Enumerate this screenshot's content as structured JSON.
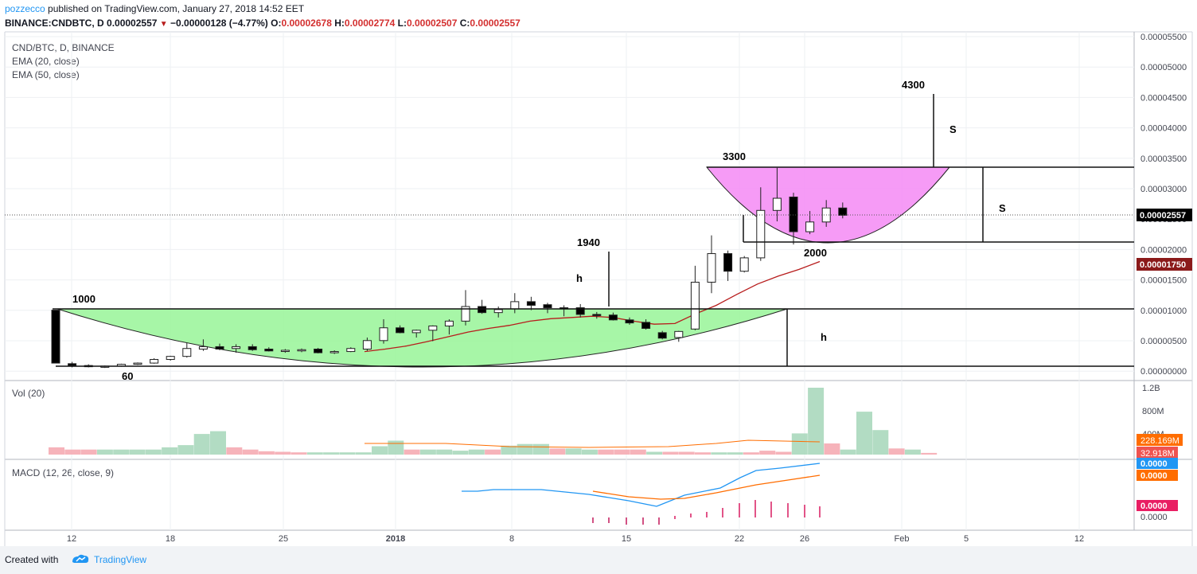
{
  "header": {
    "user": "pozzecco",
    "published_text": "published on TradingView.com, January 27, 2018 14:52 EET",
    "symbol": "BINANCE:CNDBTC, D",
    "last": "0.00002557",
    "arrow": "▼",
    "change": "−0.00000128 (−4.77%)",
    "o_label": "O:",
    "o": "0.00002678",
    "h_label": "H:",
    "h": "0.00002774",
    "l_label": "L:",
    "l": "0.00002507",
    "c_label": "C:",
    "c": "0.00002557"
  },
  "legend": {
    "title": "CND/BTC, D, BINANCE",
    "ema20": "EMA (20, close)",
    "ema50": "EMA (50, close)",
    "vol": "Vol (20)",
    "macd": "MACD (12, 26, close, 9)"
  },
  "footer": {
    "created": "Created with",
    "brand": "TradingView"
  },
  "colors": {
    "up_candle": "#ffffff",
    "down_candle": "#000000",
    "vol_up": "#a5d6b8",
    "vol_down": "#f4a6ae",
    "ema": "#b71c1c",
    "cup_fill": "#98f598",
    "handle_fill": "#f58af5",
    "macd": "#2196f3",
    "signal": "#ff6d00"
  },
  "chart_data": {
    "type": "candlestick",
    "x_axis_labels": [
      "12",
      "18",
      "25",
      "2018",
      "8",
      "15",
      "22",
      "26",
      "Feb",
      "5",
      "12"
    ],
    "price_axis_labels": [
      "0.00005500",
      "0.00005000",
      "0.00004500",
      "0.00004000",
      "0.00003500",
      "0.00003000",
      "0.00002500",
      "0.00002000",
      "0.00001500",
      "0.00001000",
      "0.00000500",
      "0.00000000"
    ],
    "price_tags": [
      "0.00002557",
      "0.00001750"
    ],
    "volume_axis_labels": [
      "1.2B",
      "800M",
      "400M"
    ],
    "volume_tags": [
      "228.169M",
      "32.918M"
    ],
    "macd_axis_labels": [
      "0.0000"
    ],
    "macd_tags": [
      "0.0000",
      "0.0000",
      "0.0000"
    ],
    "candles": [
      {
        "o": 1e-05,
        "h": 1e-05,
        "l": 1.3e-06,
        "c": 1.3e-06
      },
      {
        "o": 1.2e-06,
        "h": 1.5e-06,
        "l": 6e-07,
        "c": 9e-07
      },
      {
        "o": 9e-07,
        "h": 1.1e-06,
        "l": 6e-07,
        "c": 7e-07
      },
      {
        "o": 7e-07,
        "h": 9e-07,
        "l": 5e-07,
        "c": 8e-07
      },
      {
        "o": 8e-07,
        "h": 1.2e-06,
        "l": 7e-07,
        "c": 1.1e-06
      },
      {
        "o": 1.1e-06,
        "h": 1.4e-06,
        "l": 1e-06,
        "c": 1.3e-06
      },
      {
        "o": 1.3e-06,
        "h": 2.1e-06,
        "l": 1.2e-06,
        "c": 1.9e-06
      },
      {
        "o": 1.9e-06,
        "h": 2.5e-06,
        "l": 1.7e-06,
        "c": 2.4e-06
      },
      {
        "o": 2.4e-06,
        "h": 4.6e-06,
        "l": 2.2e-06,
        "c": 3.7e-06
      },
      {
        "o": 3.6e-06,
        "h": 5.2e-06,
        "l": 3.3e-06,
        "c": 4e-06
      },
      {
        "o": 4e-06,
        "h": 4.5e-06,
        "l": 3.4e-06,
        "c": 3.6e-06
      },
      {
        "o": 3.7e-06,
        "h": 4.4e-06,
        "l": 3e-06,
        "c": 4e-06
      },
      {
        "o": 4e-06,
        "h": 4.4e-06,
        "l": 3.3e-06,
        "c": 3.5e-06
      },
      {
        "o": 3.6e-06,
        "h": 3.9e-06,
        "l": 3.2e-06,
        "c": 3.3e-06
      },
      {
        "o": 3.3e-06,
        "h": 3.6e-06,
        "l": 3e-06,
        "c": 3.4e-06
      },
      {
        "o": 3.4e-06,
        "h": 3.7e-06,
        "l": 3.1e-06,
        "c": 3.5e-06
      },
      {
        "o": 3.6e-06,
        "h": 3.8e-06,
        "l": 2.9e-06,
        "c": 3e-06
      },
      {
        "o": 3e-06,
        "h": 3.4e-06,
        "l": 2.8e-06,
        "c": 3.2e-06
      },
      {
        "o": 3.2e-06,
        "h": 3.9e-06,
        "l": 3.1e-06,
        "c": 3.7e-06
      },
      {
        "o": 3.6e-06,
        "h": 5.5e-06,
        "l": 3.3e-06,
        "c": 5e-06
      },
      {
        "o": 5e-06,
        "h": 8.5e-06,
        "l": 4.5e-06,
        "c": 7.1e-06
      },
      {
        "o": 7.1e-06,
        "h": 7.5e-06,
        "l": 6.2e-06,
        "c": 6.3e-06
      },
      {
        "o": 6.3e-06,
        "h": 6.8e-06,
        "l": 5.5e-06,
        "c": 6.7e-06
      },
      {
        "o": 6.7e-06,
        "h": 7.5e-06,
        "l": 4.9e-06,
        "c": 7.4e-06
      },
      {
        "o": 7.4e-06,
        "h": 8.5e-06,
        "l": 6e-06,
        "c": 8.2e-06
      },
      {
        "o": 8.2e-06,
        "h": 1.33e-05,
        "l": 7.5e-06,
        "c": 1.06e-05
      },
      {
        "o": 1.06e-05,
        "h": 1.17e-05,
        "l": 9.4e-06,
        "c": 9.6e-06
      },
      {
        "o": 9.6e-06,
        "h": 1.06e-05,
        "l": 8.8e-06,
        "c": 1.01e-05
      },
      {
        "o": 1.02e-05,
        "h": 1.28e-05,
        "l": 9.5e-06,
        "c": 1.14e-05
      },
      {
        "o": 1.14e-05,
        "h": 1.22e-05,
        "l": 1e-05,
        "c": 1.08e-05
      },
      {
        "o": 1.09e-05,
        "h": 1.12e-05,
        "l": 9.5e-06,
        "c": 1.04e-05
      },
      {
        "o": 1.04e-05,
        "h": 1.08e-05,
        "l": 9e-06,
        "c": 1.02e-05
      },
      {
        "o": 1.04e-05,
        "h": 1.1e-05,
        "l": 8.8e-06,
        "c": 9.3e-06
      },
      {
        "o": 9.3e-06,
        "h": 9.7e-06,
        "l": 8.6e-06,
        "c": 9.2e-06
      },
      {
        "o": 9.2e-06,
        "h": 9.6e-06,
        "l": 8.3e-06,
        "c": 8.4e-06
      },
      {
        "o": 8.4e-06,
        "h": 8.8e-06,
        "l": 7.6e-06,
        "c": 7.9e-06
      },
      {
        "o": 8e-06,
        "h": 8.5e-06,
        "l": 6.8e-06,
        "c": 7e-06
      },
      {
        "o": 6.3e-06,
        "h": 6.6e-06,
        "l": 5.2e-06,
        "c": 5.4e-06
      },
      {
        "o": 5.5e-06,
        "h": 6.6e-06,
        "l": 4.8e-06,
        "c": 6.5e-06
      },
      {
        "o": 6.9e-06,
        "h": 1.73e-05,
        "l": 6.7e-06,
        "c": 1.46e-05
      },
      {
        "o": 1.46e-05,
        "h": 2.23e-05,
        "l": 1.28e-05,
        "c": 1.93e-05
      },
      {
        "o": 1.93e-05,
        "h": 1.98e-05,
        "l": 1.48e-05,
        "c": 1.64e-05
      },
      {
        "o": 1.64e-05,
        "h": 1.89e-05,
        "l": 1.62e-05,
        "c": 1.86e-05
      },
      {
        "o": 1.86e-05,
        "h": 3.02e-05,
        "l": 1.81e-05,
        "c": 2.64e-05
      },
      {
        "o": 2.64e-05,
        "h": 3.34e-05,
        "l": 2.46e-05,
        "c": 2.84e-05
      },
      {
        "o": 2.86e-05,
        "h": 2.93e-05,
        "l": 2.08e-05,
        "c": 2.29e-05
      },
      {
        "o": 2.29e-05,
        "h": 2.63e-05,
        "l": 2.25e-05,
        "c": 2.45e-05
      },
      {
        "o": 2.45e-05,
        "h": 2.81e-05,
        "l": 2.37e-05,
        "c": 2.68e-05
      },
      {
        "o": 2.68e-05,
        "h": 2.77e-05,
        "l": 2.51e-05,
        "c": 2.56e-05
      }
    ],
    "ema_line": [
      3.2e-06,
      3.6e-06,
      4.1e-06,
      4.8e-06,
      5.6e-06,
      6.4e-06,
      7e-06,
      7.5e-06,
      8.2e-06,
      8.6e-06,
      8.8e-06,
      9e-06,
      8.8e-06,
      8.2e-06,
      7.7e-06,
      7.8e-06,
      9.4e-06,
      1.08e-05,
      1.26e-05,
      1.43e-05,
      1.56e-05,
      1.67e-05,
      1.8e-05
    ],
    "volumes_m": [
      130,
      90,
      90,
      90,
      90,
      90,
      90,
      130,
      170,
      370,
      420,
      130,
      90,
      60,
      50,
      40,
      40,
      40,
      40,
      40,
      150,
      250,
      90,
      90,
      90,
      70,
      90,
      90,
      160,
      190,
      190,
      110,
      110,
      90,
      90,
      90,
      90,
      50,
      50,
      50,
      40,
      40,
      40,
      40,
      70,
      50,
      380,
      1200,
      200,
      90,
      770,
      440,
      110,
      90,
      30
    ],
    "volume_up": [
      false,
      false,
      false,
      true,
      true,
      true,
      true,
      true,
      true,
      true,
      true,
      false,
      false,
      false,
      false,
      false,
      true,
      true,
      true,
      true,
      true,
      true,
      false,
      true,
      true,
      true,
      true,
      false,
      true,
      true,
      true,
      false,
      true,
      true,
      false,
      false,
      false,
      true,
      false,
      false,
      false,
      true,
      true,
      false,
      false,
      false,
      true,
      true,
      false,
      true,
      true,
      true,
      false,
      true,
      false
    ],
    "annotations": [
      "1000",
      "60",
      "1940",
      "h",
      "h",
      "3300",
      "2000",
      "4300",
      "S",
      "S"
    ]
  }
}
